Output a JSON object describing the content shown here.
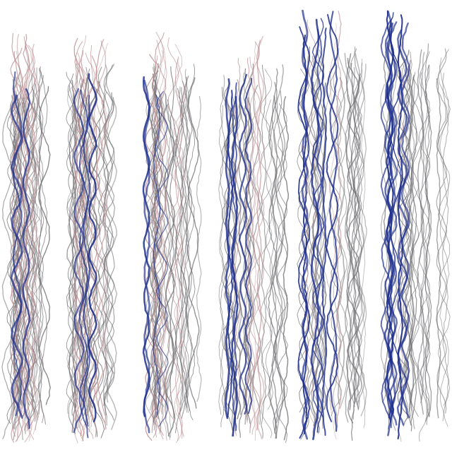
{
  "image": {
    "description_kind": "abstract-texture",
    "background_color": "#ffffff",
    "palette": {
      "gray": "#6e6e72",
      "pink": "#b88a8e",
      "blue": "#1e2f8c"
    },
    "bands": [
      {
        "gray": 1.0,
        "pink": 0.9,
        "blue": 0.3
      },
      {
        "gray": 1.0,
        "pink": 0.9,
        "blue": 0.35
      },
      {
        "gray": 1.0,
        "pink": 0.8,
        "blue": 0.4
      },
      {
        "gray": 1.0,
        "pink": 0.5,
        "blue": 0.6
      },
      {
        "gray": 1.0,
        "pink": 0.3,
        "blue": 0.85
      },
      {
        "gray": 1.0,
        "pink": 0.1,
        "blue": 1.0
      }
    ]
  }
}
